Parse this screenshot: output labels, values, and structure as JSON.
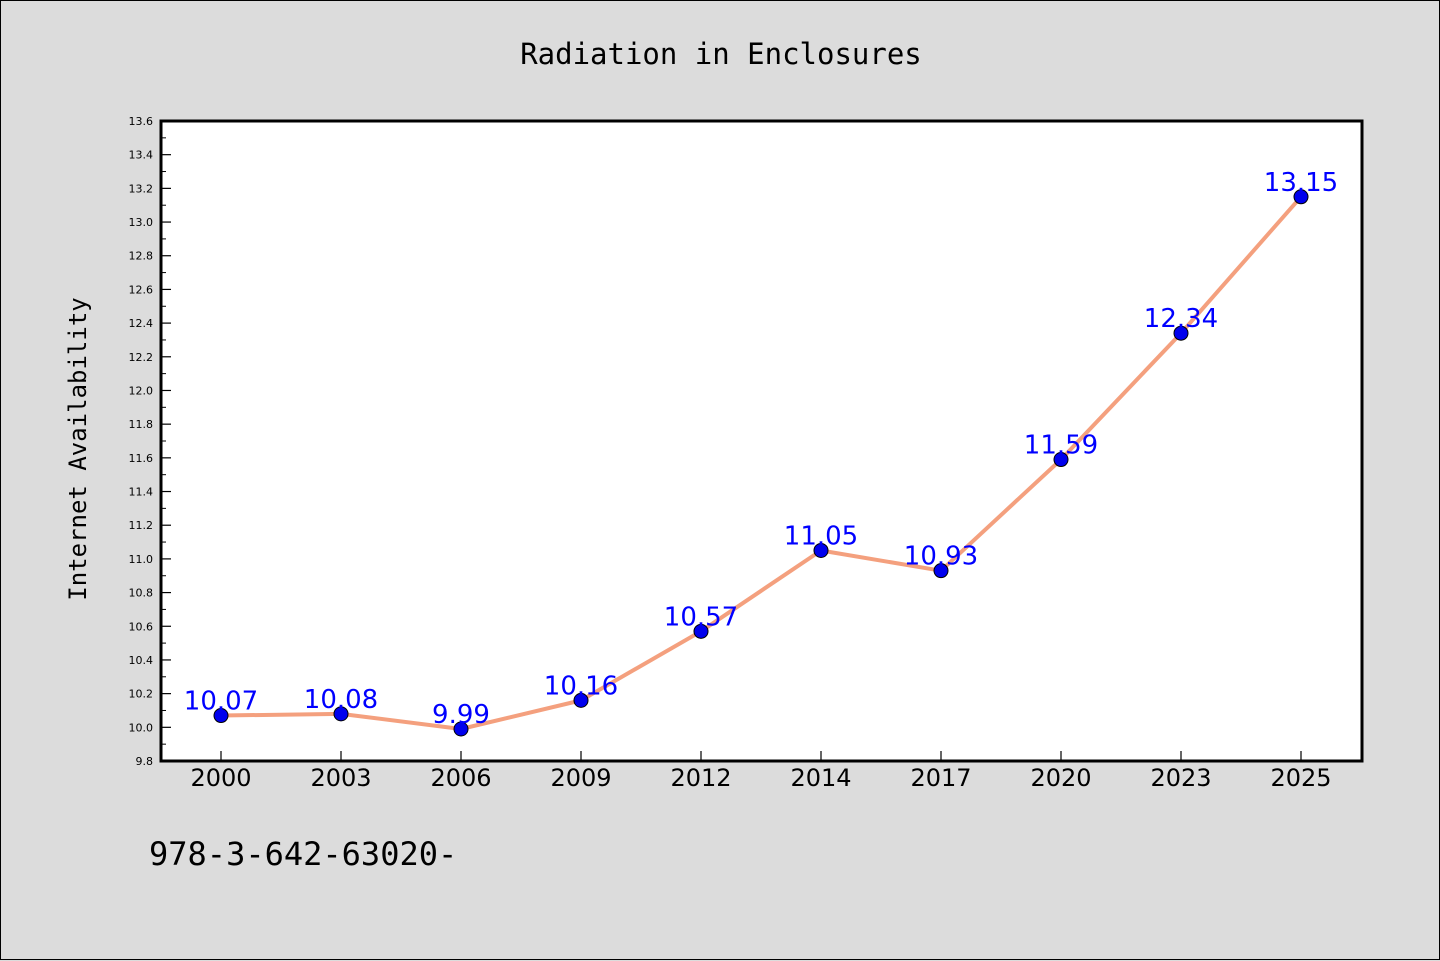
{
  "chart_data": {
    "type": "line",
    "title": "Radiation in Enclosures",
    "xlabel": "",
    "ylabel": "Internet Availability",
    "categories": [
      "2000",
      "2003",
      "2006",
      "2009",
      "2012",
      "2014",
      "2017",
      "2020",
      "2023",
      "2025"
    ],
    "series": [
      {
        "values": [
          10.07,
          10.08,
          9.99,
          10.16,
          10.57,
          11.05,
          10.93,
          11.59,
          12.34,
          13.15
        ],
        "line_color": "#f4a07e",
        "marker_color": "#0000ee"
      }
    ],
    "data_labels": [
      "10.07",
      "10.08",
      "9.99",
      "10.16",
      "10.57",
      "11.05",
      "10.93",
      "11.59",
      "12.34",
      "13.15"
    ],
    "ylim": [
      9.8,
      13.6
    ],
    "y_ticks": [
      "9.8",
      "10.0",
      "10.2",
      "10.4",
      "10.6",
      "10.8",
      "11.0",
      "11.2",
      "11.4",
      "11.6",
      "11.8",
      "12.0",
      "12.2",
      "12.4",
      "12.6",
      "12.8",
      "13.0",
      "13.2",
      "13.4",
      "13.6"
    ],
    "grid": false,
    "legend": "none"
  },
  "footnote": "978-3-642-63020-",
  "colors": {
    "background": "#dcdcdc",
    "plot_background": "#ffffff",
    "label_color": "#0000ff"
  }
}
